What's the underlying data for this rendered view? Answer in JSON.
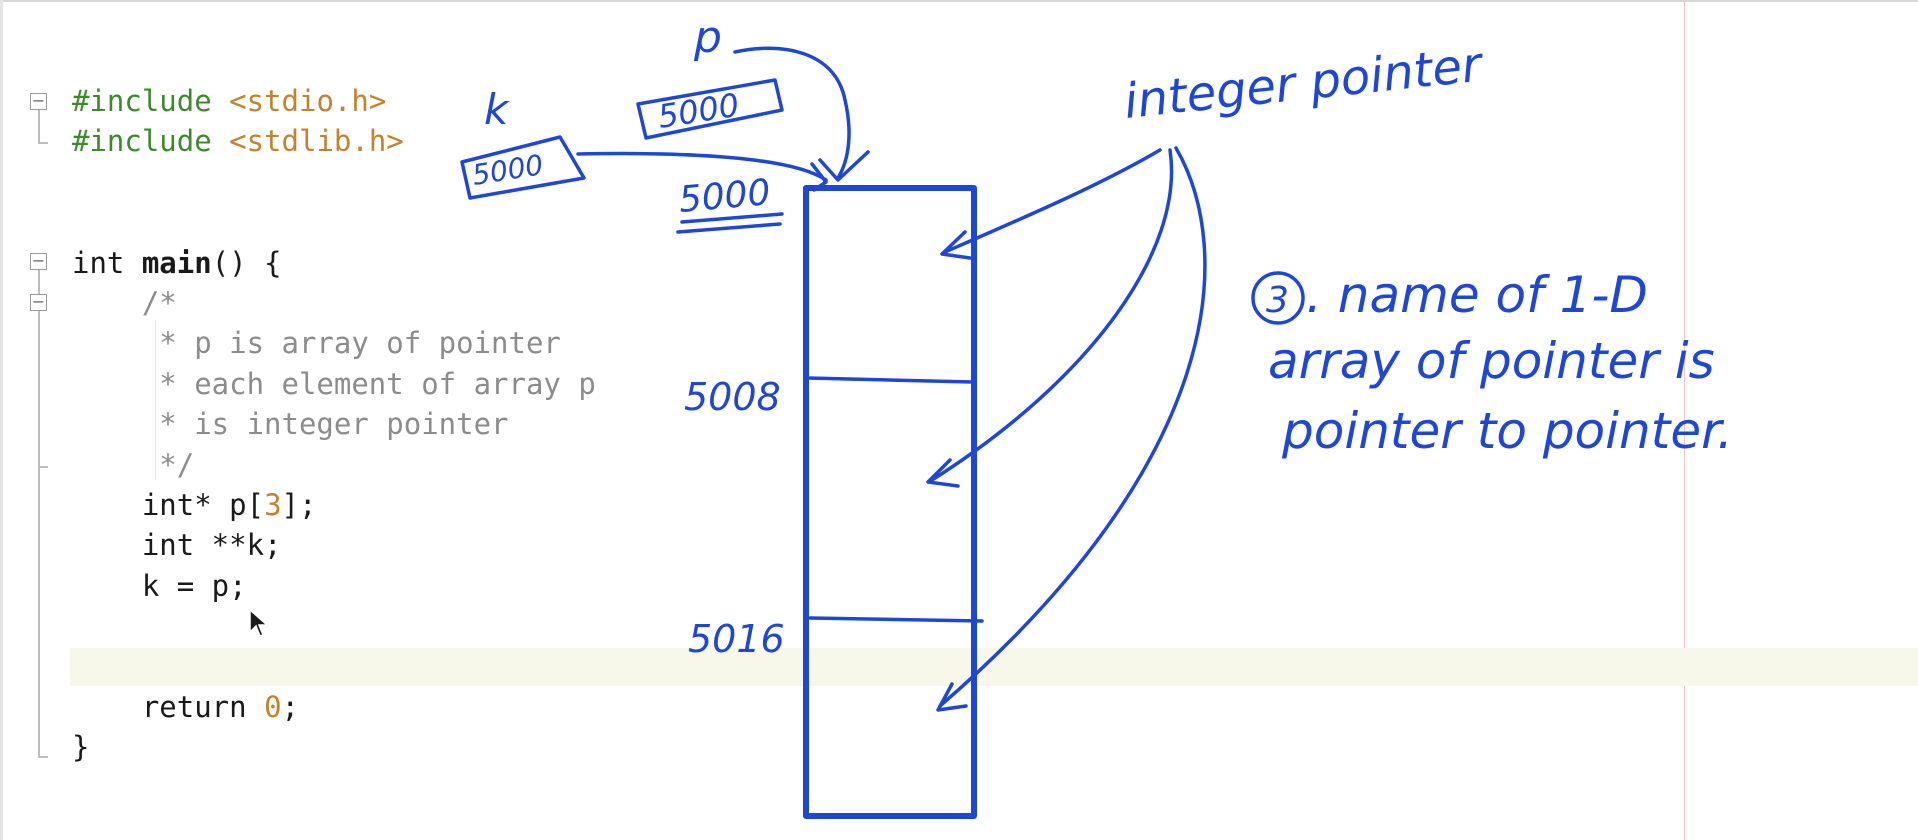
{
  "editor": {
    "lines": [
      {
        "segments": [
          {
            "text": "#include ",
            "cls": "pp"
          },
          {
            "text": "<stdio.h>",
            "cls": "hdr"
          }
        ]
      },
      {
        "segments": [
          {
            "text": "#include ",
            "cls": "pp"
          },
          {
            "text": "<stdlib.h>",
            "cls": "hdr"
          }
        ]
      },
      {
        "segments": []
      },
      {
        "segments": []
      },
      {
        "segments": [
          {
            "text": "int ",
            "cls": ""
          },
          {
            "text": "main",
            "cls": "kw-bold"
          },
          {
            "text": "() {",
            "cls": ""
          }
        ]
      },
      {
        "segments": [
          {
            "text": "    /*",
            "cls": "cmt"
          }
        ]
      },
      {
        "segments": [
          {
            "text": "     * p is array of pointer",
            "cls": "cmt"
          }
        ]
      },
      {
        "segments": [
          {
            "text": "     * each element of array p",
            "cls": "cmt"
          }
        ]
      },
      {
        "segments": [
          {
            "text": "     * is integer pointer",
            "cls": "cmt"
          }
        ]
      },
      {
        "segments": [
          {
            "text": "     */",
            "cls": "cmt"
          }
        ]
      },
      {
        "segments": [
          {
            "text": "    int* p[",
            "cls": ""
          },
          {
            "text": "3",
            "cls": "num"
          },
          {
            "text": "];",
            "cls": ""
          }
        ]
      },
      {
        "segments": [
          {
            "text": "    int **k;",
            "cls": ""
          }
        ]
      },
      {
        "segments": [
          {
            "text": "    k = p;",
            "cls": ""
          }
        ]
      },
      {
        "segments": []
      },
      {
        "segments": []
      },
      {
        "segments": [
          {
            "text": "    return ",
            "cls": ""
          },
          {
            "text": "0",
            "cls": "num"
          },
          {
            "text": ";",
            "cls": ""
          }
        ]
      },
      {
        "segments": [
          {
            "text": "}",
            "cls": ""
          }
        ]
      }
    ]
  },
  "annotations": {
    "ink_color": "#1f47d6",
    "var_p_label": "p",
    "var_p_value": "5000",
    "var_k_label": "k",
    "var_k_value": "5000",
    "array_base_address": "5000",
    "address_row_2": "5008",
    "address_row_3": "5016",
    "integer_pointer_label": "integer pointer",
    "note_number": "3",
    "note_lines": [
      ". name of 1-D",
      "array of pointer is",
      "pointer to pointer."
    ]
  }
}
